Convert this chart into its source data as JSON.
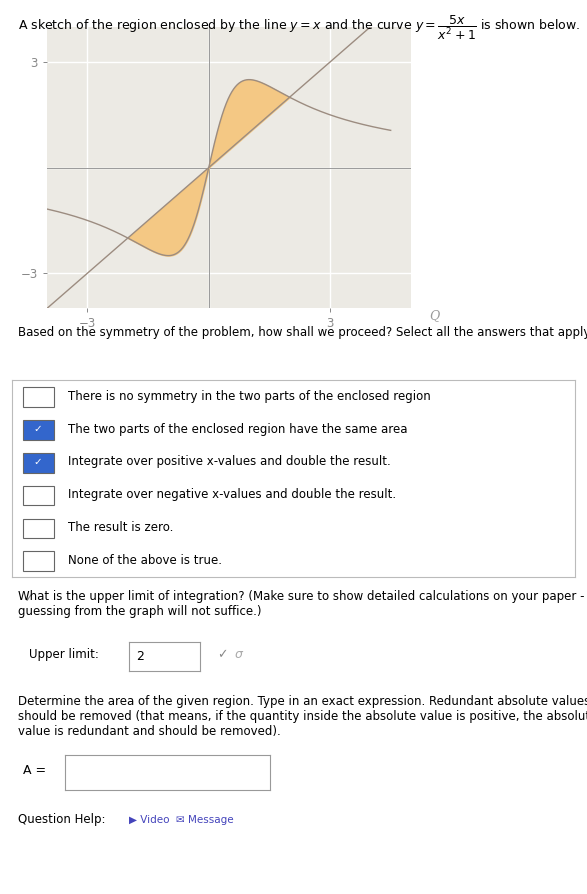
{
  "graph_xlim": [
    -4,
    5
  ],
  "graph_ylim": [
    -4,
    4
  ],
  "x_ticks": [
    -3,
    3
  ],
  "y_ticks": [
    -3,
    3
  ],
  "fill_color": "#F5C57A",
  "fill_alpha": 0.9,
  "line_color": "#9C8C80",
  "curve_color": "#9C8C80",
  "background_color": "#ECEAE4",
  "grid_color": "#FFFFFF",
  "axis_color": "#999999",
  "tick_color": "#888888",
  "intersection_x": 2.0,
  "checkbox_items": [
    {
      "text": "There is no symmetry in the two parts of the enclosed region",
      "checked": false
    },
    {
      "text": "The two parts of the enclosed region have the same area",
      "checked": true
    },
    {
      "text": "Integrate over positive x-values and double the result.",
      "checked": true
    },
    {
      "text": "Integrate over negative x-values and double the result.",
      "checked": false
    },
    {
      "text": "The result is zero.",
      "checked": false
    },
    {
      "text": "None of the above is true.",
      "checked": false
    }
  ],
  "question1": "Based on the symmetry of the problem, how shall we proceed? Select all the answers that apply.",
  "question2": "What is the upper limit of integration? (Make sure to show detailed calculations on your paper - just\nguessing from the graph will not suffice.)",
  "upper_limit_label": "Upper limit:",
  "upper_limit_value": "2",
  "question3": "Determine the area of the given region. Type in an exact expression. Redundant absolute values\nshould be removed (that means, if the quantity inside the absolute value is positive, the absolute\nvalue is redundant and should be removed).",
  "area_label": "A =",
  "footer": "Question Help:",
  "fig_width": 5.87,
  "fig_height": 8.94,
  "title": "A sketch of the region enclosed by the line $y = x$ and the curve $y = \\dfrac{5x}{x^2+1}$ is shown below."
}
